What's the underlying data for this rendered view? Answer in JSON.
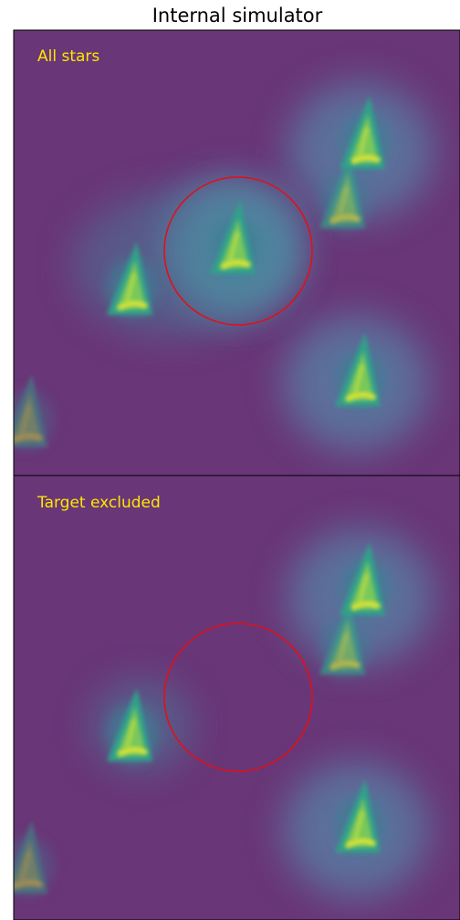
{
  "title": "Internal simulator",
  "panels": [
    {
      "label": "All stars"
    },
    {
      "label": "Target excluded"
    }
  ]
}
